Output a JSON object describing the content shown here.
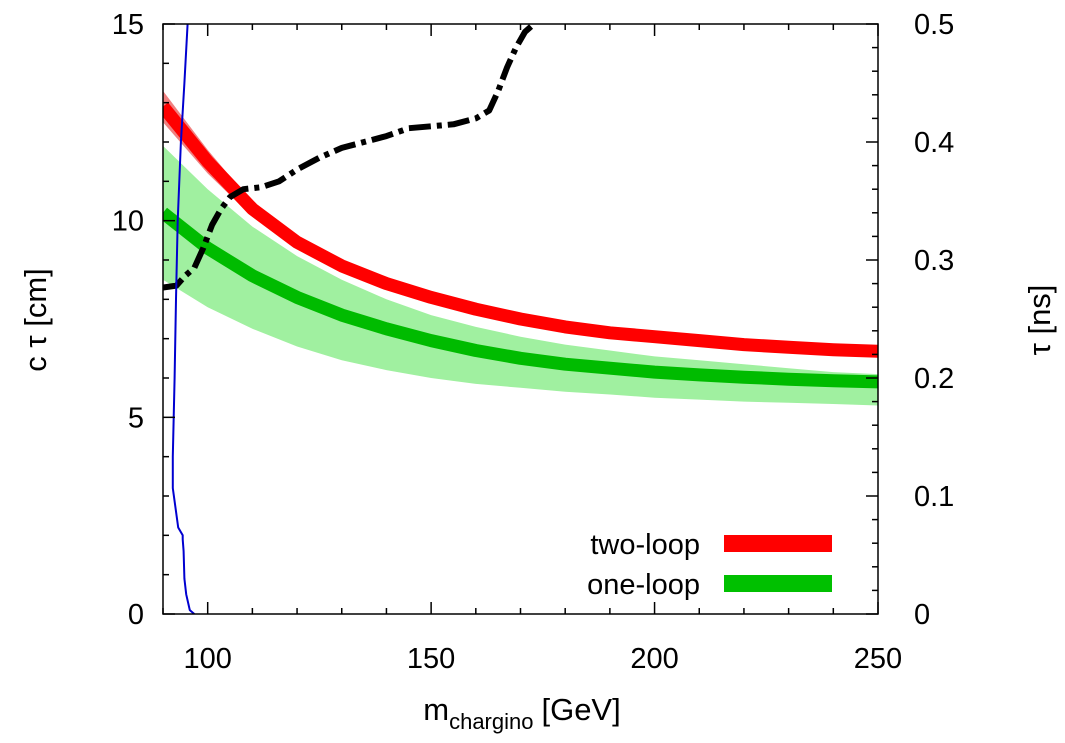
{
  "chart_data": {
    "type": "line",
    "title": "",
    "xlabel_main": "m",
    "xlabel_sub": "chargino",
    "xlabel_unit": "[GeV]",
    "ylabel": "c τ [cm]",
    "y2label": "τ [ns]",
    "xlim": [
      90,
      250
    ],
    "ylim": [
      0,
      15
    ],
    "y2lim": [
      0,
      0.5
    ],
    "x_ticks": [
      100,
      150,
      200,
      250
    ],
    "y_ticks": [
      0,
      5,
      10,
      15
    ],
    "y2_ticks": [
      0,
      0.1,
      0.2,
      0.3,
      0.4,
      0.5
    ],
    "x_tick_labels": [
      "100",
      "150",
      "200",
      "250"
    ],
    "y_tick_labels": [
      "0",
      "5",
      "10",
      "15"
    ],
    "y2_tick_labels": [
      "0",
      "0.1",
      "0.2",
      "0.3",
      "0.4",
      "0.5"
    ],
    "grid": false,
    "legend_position": "bottom-right",
    "legend": [
      {
        "label": "two-loop",
        "color": "#ff0000"
      },
      {
        "label": "one-loop",
        "color": "#00c000"
      }
    ],
    "bands": [
      {
        "name": "one-loop",
        "fill_color": "#a0f0a0",
        "line_color": "#00bb00",
        "x": [
          90,
          100,
          110,
          120,
          130,
          140,
          150,
          160,
          170,
          180,
          190,
          200,
          210,
          220,
          230,
          240,
          250
        ],
        "upper": [
          11.9,
          10.8,
          9.85,
          9.1,
          8.5,
          8.0,
          7.6,
          7.3,
          7.05,
          6.85,
          6.7,
          6.55,
          6.45,
          6.35,
          6.25,
          6.15,
          6.1
        ],
        "center": [
          10.2,
          9.3,
          8.6,
          8.05,
          7.6,
          7.25,
          6.95,
          6.7,
          6.5,
          6.35,
          6.25,
          6.15,
          6.08,
          6.02,
          5.97,
          5.93,
          5.9
        ],
        "lower": [
          8.5,
          7.8,
          7.25,
          6.8,
          6.45,
          6.2,
          6.0,
          5.85,
          5.75,
          5.65,
          5.58,
          5.5,
          5.45,
          5.4,
          5.37,
          5.34,
          5.3
        ]
      },
      {
        "name": "two-loop",
        "fill_color": "#f08080",
        "line_color": "#ff0000",
        "x": [
          90,
          100,
          110,
          120,
          130,
          140,
          150,
          160,
          170,
          180,
          190,
          200,
          210,
          220,
          230,
          240,
          250
        ],
        "upper": [
          13.3,
          11.8,
          10.45,
          9.55,
          8.95,
          8.5,
          8.15,
          7.85,
          7.6,
          7.4,
          7.25,
          7.15,
          7.05,
          6.95,
          6.88,
          6.82,
          6.78
        ],
        "center": [
          12.9,
          11.5,
          10.3,
          9.45,
          8.85,
          8.4,
          8.05,
          7.75,
          7.5,
          7.3,
          7.15,
          7.05,
          6.95,
          6.85,
          6.78,
          6.72,
          6.68
        ],
        "lower": [
          12.5,
          11.2,
          10.1,
          9.3,
          8.7,
          8.25,
          7.9,
          7.6,
          7.38,
          7.2,
          7.05,
          6.95,
          6.85,
          6.77,
          6.7,
          6.64,
          6.6
        ]
      }
    ],
    "lines": [
      {
        "name": "limit-dashdot",
        "color": "#000000",
        "style": "dash-dot",
        "x": [
          90,
          93,
          95,
          97,
          99,
          101,
          103,
          105,
          108,
          112,
          116,
          120,
          125,
          130,
          135,
          140,
          145,
          150,
          155,
          160,
          163,
          165,
          167,
          169,
          171,
          173
        ],
        "y": [
          8.3,
          8.35,
          8.6,
          8.8,
          9.3,
          9.9,
          10.3,
          10.6,
          10.8,
          10.85,
          11.0,
          11.3,
          11.6,
          11.85,
          12.0,
          12.15,
          12.35,
          12.4,
          12.45,
          12.6,
          12.8,
          13.3,
          13.9,
          14.4,
          14.8,
          15.0
        ]
      },
      {
        "name": "limit-blue",
        "color": "#0000d0",
        "style": "solid",
        "x": [
          95.5,
          94.8,
          94.0,
          93.3,
          92.9,
          92.6,
          92.4,
          92.2,
          92.2,
          93.4,
          94.4,
          94.4,
          94.6,
          94.8,
          95.2,
          96.0,
          97.0
        ],
        "y": [
          15.0,
          13.5,
          12.0,
          10.0,
          8.0,
          6.0,
          5.0,
          4.0,
          3.2,
          2.2,
          2.0,
          1.9,
          1.6,
          0.9,
          0.5,
          0.1,
          0.0
        ]
      }
    ]
  }
}
